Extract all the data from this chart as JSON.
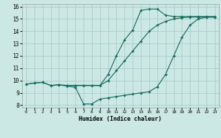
{
  "xlabel": "Humidex (Indice chaleur)",
  "xlim": [
    -0.5,
    23.5
  ],
  "ylim": [
    7.8,
    16.2
  ],
  "xticks": [
    0,
    1,
    2,
    3,
    4,
    5,
    6,
    7,
    8,
    9,
    10,
    11,
    12,
    13,
    14,
    15,
    16,
    17,
    18,
    19,
    20,
    21,
    22,
    23
  ],
  "yticks": [
    8,
    9,
    10,
    11,
    12,
    13,
    14,
    15,
    16
  ],
  "bg_color": "#cce8e4",
  "grid_color": "#aacfcc",
  "line_color": "#1a6e60",
  "line1_x": [
    0,
    1,
    2,
    3,
    4,
    5,
    6,
    7,
    8,
    9,
    10,
    11,
    12,
    13,
    14,
    15,
    16,
    17,
    18,
    19,
    20,
    21,
    22,
    23
  ],
  "line1_y": [
    9.7,
    9.8,
    9.85,
    9.6,
    9.65,
    9.6,
    9.6,
    9.6,
    9.6,
    9.6,
    10.0,
    10.8,
    11.6,
    12.4,
    13.2,
    14.0,
    14.5,
    14.8,
    15.0,
    15.1,
    15.15,
    15.15,
    15.15,
    15.15
  ],
  "line2_x": [
    0,
    1,
    2,
    3,
    4,
    5,
    6,
    7,
    8,
    9,
    10,
    11,
    12,
    13,
    14,
    15,
    16,
    17,
    18,
    19,
    20,
    21,
    22,
    23
  ],
  "line2_y": [
    9.7,
    9.8,
    9.85,
    9.6,
    9.65,
    9.55,
    9.45,
    8.1,
    8.1,
    8.5,
    8.6,
    8.7,
    8.8,
    8.9,
    9.0,
    9.1,
    9.5,
    10.5,
    12.0,
    13.5,
    14.5,
    15.0,
    15.15,
    15.15
  ],
  "line3_x": [
    3,
    4,
    5,
    6,
    7,
    8,
    9,
    10,
    11,
    12,
    13,
    14,
    15,
    16,
    17,
    18,
    19,
    20,
    21,
    22,
    23
  ],
  "line3_y": [
    9.6,
    9.65,
    9.6,
    9.6,
    9.6,
    9.6,
    9.6,
    10.5,
    12.0,
    13.3,
    14.1,
    15.7,
    15.8,
    15.8,
    15.3,
    15.2,
    15.2,
    15.2,
    15.2,
    15.2,
    15.2
  ]
}
